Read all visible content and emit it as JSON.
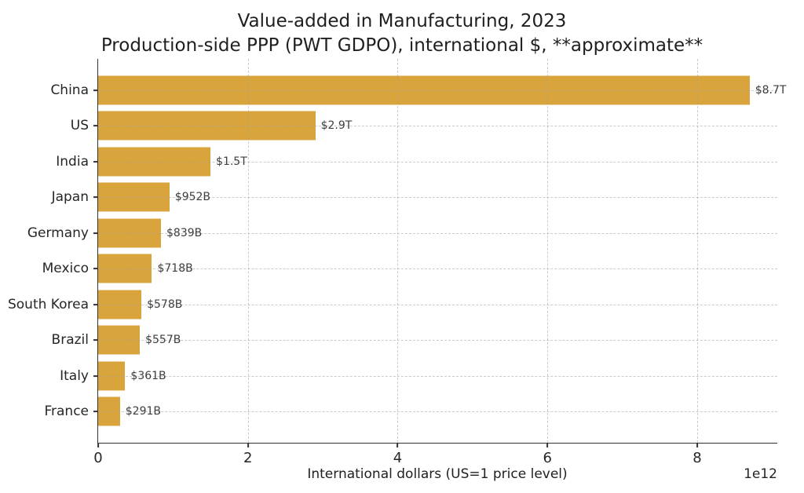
{
  "colors": {
    "bar": "#D9A43C",
    "grid": "#A0A0A0",
    "spine": "#333333",
    "text": "#1F1F1F",
    "value_label": "#3D3D3D"
  },
  "chart_data": {
    "type": "bar",
    "orientation": "horizontal",
    "title": "Value-added in Manufacturing, 2023",
    "subtitle": "Production-side PPP (PWT GDPO), international $, **approximate**",
    "xlabel": "International dollars (US=1 price level)",
    "x_offset_text": "1e12",
    "xlim_trillions": [
      0,
      9.07
    ],
    "xticks_trillions": [
      0,
      2,
      4,
      6,
      8
    ],
    "grid": "dashed",
    "legend": "none",
    "categories": [
      "China",
      "US",
      "India",
      "Japan",
      "Germany",
      "Mexico",
      "South Korea",
      "Brazil",
      "Italy",
      "France"
    ],
    "values_trillions": [
      8.7,
      2.9,
      1.5,
      0.952,
      0.839,
      0.718,
      0.578,
      0.557,
      0.361,
      0.291
    ],
    "value_labels": [
      "$8.7T",
      "$2.9T",
      "$1.5T",
      "$952B",
      "$839B",
      "$718B",
      "$578B",
      "$557B",
      "$361B",
      "$291B"
    ]
  }
}
